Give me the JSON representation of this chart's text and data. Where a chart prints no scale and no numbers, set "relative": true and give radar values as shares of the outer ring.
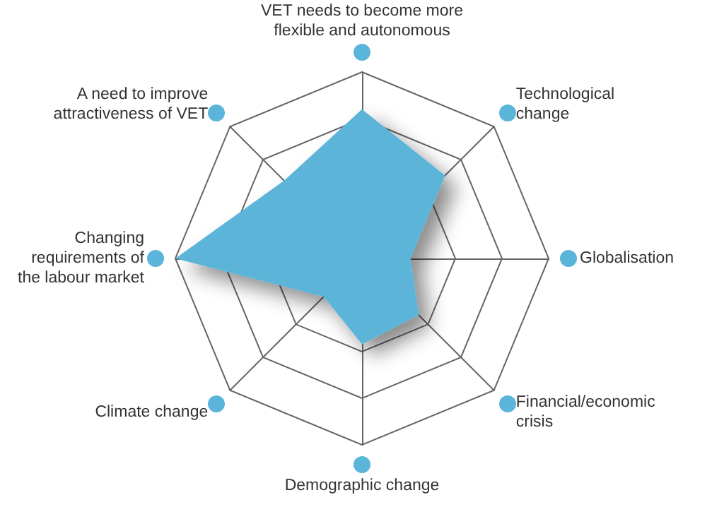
{
  "chart_data": {
    "type": "radar",
    "relative": true,
    "marker": "none",
    "categories": [
      "VET needs to become more flexible and autonomous",
      "Technological change",
      "Globalisation",
      "Financial/economic crisis",
      "Demographic change",
      "Climate change",
      "Changing requirements of the labour market",
      "A need to improve attractiveness of VET"
    ],
    "series": [
      {
        "color": "#5bb4d9",
        "values": [
          0.8,
          0.63,
          0.26,
          0.43,
          0.46,
          0.29,
          1,
          0.59
        ]
      }
    ]
  }
}
